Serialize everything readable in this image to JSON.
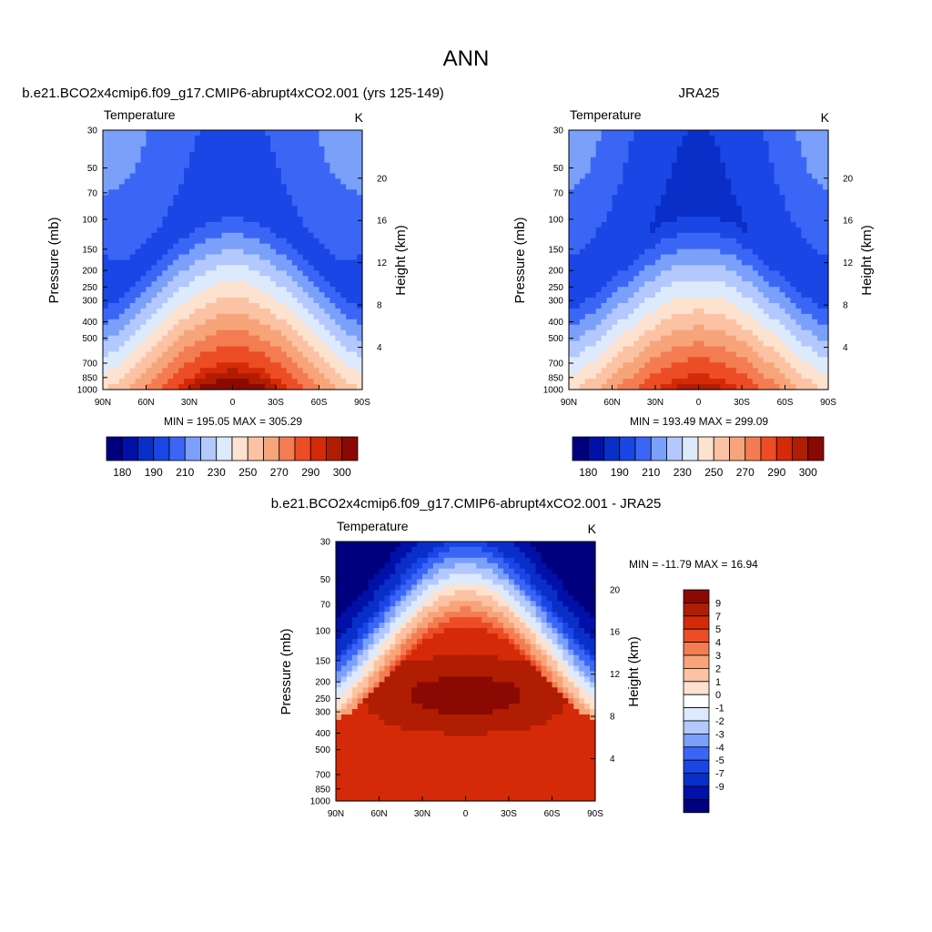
{
  "figure": {
    "title": "ANN",
    "x_tick_labels": [
      "90N",
      "60N",
      "30N",
      "0",
      "30S",
      "60S",
      "90S"
    ],
    "pressure_ticks": [
      "30",
      "50",
      "70",
      "100",
      "150",
      "200",
      "250",
      "300",
      "400",
      "500",
      "700",
      "850",
      "1000"
    ],
    "height_ticks": [
      "20",
      "16",
      "12",
      "8",
      "4"
    ]
  },
  "chart_data": [
    {
      "type": "heatmap",
      "title": "b.e21.BCO2x4cmip6.f09_g17.CMIP6-abrupt4xCO2.001 (yrs 125-149)",
      "variable_label": "Temperature",
      "units": "K",
      "ylabel": "Pressure (mb)",
      "y2label": "Height (km)",
      "stats": "MIN = 195.05  MAX = 305.29",
      "x_ticks": [
        90,
        60,
        30,
        0,
        -30,
        -60,
        -90
      ],
      "y_ticks_mb": [
        30,
        50,
        70,
        100,
        150,
        200,
        250,
        300,
        400,
        500,
        700,
        850,
        1000
      ],
      "y2_ticks_km": [
        20,
        16,
        12,
        8,
        4
      ],
      "colorbar": {
        "orientation": "horizontal",
        "levels": [
          180,
          185,
          190,
          200,
          210,
          220,
          230,
          240,
          250,
          260,
          270,
          280,
          290,
          295,
          300
        ],
        "labels": [
          "180",
          "190",
          "210",
          "230",
          "250",
          "270",
          "290",
          "300"
        ],
        "colors": [
          "#00007f",
          "#0010a8",
          "#0a2ec8",
          "#1a46e6",
          "#3b66f5",
          "#7aa0fa",
          "#b3c8fc",
          "#ddeafc",
          "#fde2d0",
          "#fbc3a3",
          "#f8a47a",
          "#f47c52",
          "#ec4d25",
          "#d52a09",
          "#b01d02",
          "#8a0a03"
        ]
      }
    },
    {
      "type": "heatmap",
      "title": "JRA25",
      "variable_label": "Temperature",
      "units": "K",
      "ylabel": "Pressure (mb)",
      "y2label": "Height (km)",
      "stats": "MIN = 193.49  MAX = 299.09",
      "x_ticks": [
        90,
        60,
        30,
        0,
        -30,
        -60,
        -90
      ],
      "y_ticks_mb": [
        30,
        50,
        70,
        100,
        150,
        200,
        250,
        300,
        400,
        500,
        700,
        850,
        1000
      ],
      "y2_ticks_km": [
        20,
        16,
        12,
        8,
        4
      ],
      "colorbar": {
        "orientation": "horizontal",
        "levels": [
          180,
          185,
          190,
          200,
          210,
          220,
          230,
          240,
          250,
          260,
          270,
          280,
          290,
          295,
          300
        ],
        "labels": [
          "180",
          "190",
          "210",
          "230",
          "250",
          "270",
          "290",
          "300"
        ],
        "colors": [
          "#00007f",
          "#0010a8",
          "#0a2ec8",
          "#1a46e6",
          "#3b66f5",
          "#7aa0fa",
          "#b3c8fc",
          "#ddeafc",
          "#fde2d0",
          "#fbc3a3",
          "#f8a47a",
          "#f47c52",
          "#ec4d25",
          "#d52a09",
          "#b01d02",
          "#8a0a03"
        ]
      }
    },
    {
      "type": "heatmap",
      "title": "b.e21.BCO2x4cmip6.f09_g17.CMIP6-abrupt4xCO2.001 - JRA25",
      "variable_label": "Temperature",
      "units": "K",
      "ylabel": "Pressure (mb)",
      "y2label": "Height (km)",
      "stats": "MIN = -11.79  MAX =  16.94",
      "x_ticks": [
        90,
        60,
        30,
        0,
        -30,
        -60,
        -90
      ],
      "y_ticks_mb": [
        30,
        50,
        70,
        100,
        150,
        200,
        250,
        300,
        400,
        500,
        700,
        850,
        1000
      ],
      "y2_ticks_km": [
        20,
        16,
        12,
        8,
        4
      ],
      "colorbar": {
        "orientation": "vertical",
        "labels": [
          "9",
          "7",
          "5",
          "4",
          "3",
          "2",
          "1",
          "0",
          "-1",
          "-2",
          "-3",
          "-4",
          "-5",
          "-7",
          "-9"
        ],
        "colors": [
          "#8a0a03",
          "#b01d02",
          "#d52a09",
          "#ec4d25",
          "#f47c52",
          "#f8a47a",
          "#fbc3a3",
          "#fde2d0",
          "#ffffff",
          "#ddeafc",
          "#b3c8fc",
          "#7aa0fa",
          "#3b66f5",
          "#1a46e6",
          "#0a2ec8",
          "#0010a8",
          "#00007f"
        ]
      }
    }
  ]
}
